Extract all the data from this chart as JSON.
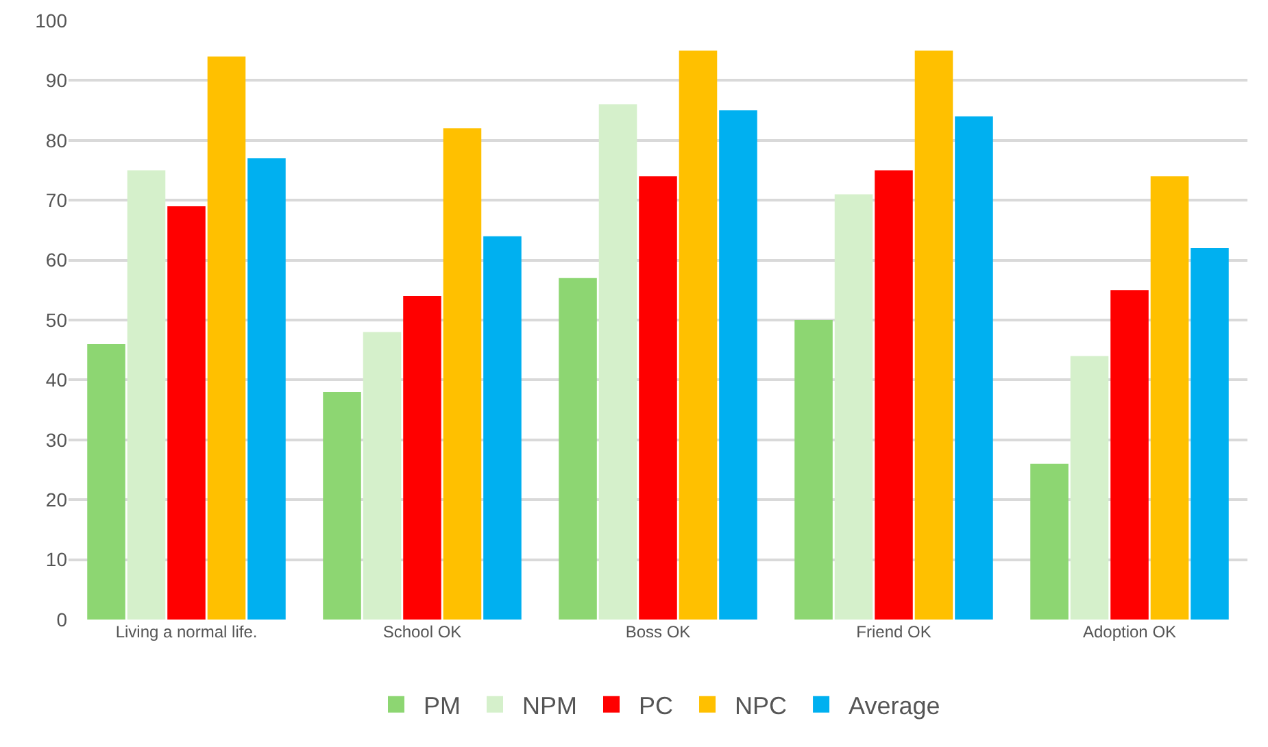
{
  "chart_data": {
    "type": "bar",
    "categories": [
      "Living a normal life.",
      "School OK",
      "Boss OK",
      "Friend OK",
      "Adoption OK"
    ],
    "series": [
      {
        "name": "PM",
        "color": "#8dd672",
        "values": [
          46,
          38,
          57,
          50,
          26
        ]
      },
      {
        "name": "NPM",
        "color": "#d5f0cb",
        "values": [
          75,
          48,
          86,
          71,
          44
        ]
      },
      {
        "name": "PC",
        "color": "#ff0000",
        "values": [
          69,
          54,
          74,
          75,
          55
        ]
      },
      {
        "name": "NPC",
        "color": "#ffc000",
        "values": [
          94,
          82,
          95,
          95,
          74
        ]
      },
      {
        "name": "Average",
        "color": "#00b0f0",
        "values": [
          77,
          64,
          85,
          84,
          62
        ]
      }
    ],
    "ylim": [
      0,
      100
    ],
    "yticks": [
      0,
      10,
      20,
      30,
      40,
      50,
      60,
      70,
      80,
      90,
      100
    ],
    "grid": "y",
    "legend": "bottom"
  }
}
